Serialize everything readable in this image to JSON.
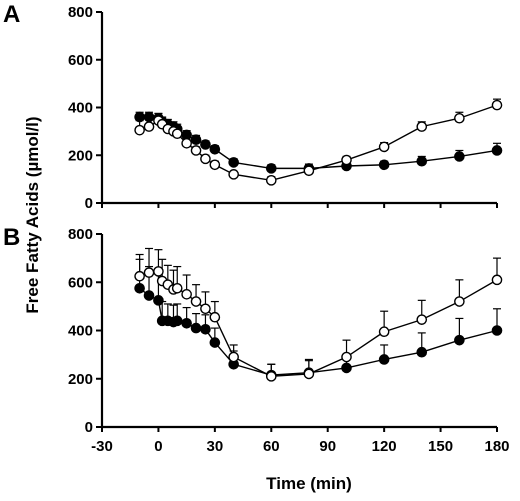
{
  "chart_data": [
    {
      "panel": "A",
      "type": "line",
      "ylim": [
        0,
        800
      ],
      "yticks": [
        0,
        200,
        400,
        600,
        800
      ],
      "series": [
        {
          "marker": "open-circle",
          "color": "#000000",
          "x": [
            -10,
            -5,
            0,
            2,
            5,
            8,
            10,
            15,
            20,
            25,
            30,
            40,
            60,
            80,
            100,
            120,
            140,
            160,
            180
          ],
          "y": [
            305,
            320,
            345,
            330,
            310,
            300,
            290,
            250,
            220,
            185,
            160,
            120,
            95,
            135,
            180,
            235,
            320,
            355,
            410
          ],
          "err": [
            40,
            40,
            30,
            25,
            25,
            20,
            20,
            15,
            15,
            15,
            15,
            12,
            15,
            20,
            15,
            18,
            20,
            25,
            25
          ]
        },
        {
          "marker": "filled-circle",
          "color": "#000000",
          "x": [
            -10,
            -5,
            0,
            2,
            5,
            8,
            10,
            15,
            20,
            25,
            30,
            40,
            60,
            80,
            100,
            120,
            140,
            160,
            180
          ],
          "y": [
            360,
            360,
            355,
            340,
            330,
            320,
            310,
            285,
            265,
            245,
            225,
            170,
            145,
            145,
            155,
            160,
            175,
            195,
            220
          ],
          "err": [
            20,
            20,
            20,
            20,
            20,
            20,
            20,
            18,
            18,
            15,
            15,
            15,
            15,
            18,
            15,
            15,
            20,
            25,
            30
          ]
        }
      ]
    },
    {
      "panel": "B",
      "type": "line",
      "ylim": [
        0,
        800
      ],
      "yticks": [
        0,
        200,
        400,
        600,
        800
      ],
      "series": [
        {
          "marker": "open-circle",
          "color": "#000000",
          "x": [
            -10,
            -5,
            0,
            2,
            5,
            8,
            10,
            15,
            20,
            25,
            30,
            40,
            60,
            80,
            100,
            120,
            140,
            160,
            180
          ],
          "y": [
            625,
            640,
            645,
            605,
            590,
            570,
            575,
            550,
            520,
            490,
            455,
            290,
            210,
            220,
            290,
            395,
            445,
            520,
            610
          ],
          "err": [
            90,
            100,
            90,
            90,
            80,
            80,
            90,
            80,
            70,
            70,
            65,
            50,
            50,
            60,
            70,
            85,
            80,
            90,
            90
          ]
        },
        {
          "marker": "filled-circle",
          "color": "#000000",
          "x": [
            -10,
            -5,
            0,
            2,
            5,
            8,
            10,
            15,
            20,
            25,
            30,
            40,
            60,
            80,
            100,
            120,
            140,
            160,
            180
          ],
          "y": [
            575,
            545,
            525,
            440,
            440,
            435,
            440,
            430,
            410,
            405,
            350,
            260,
            215,
            225,
            245,
            280,
            310,
            360,
            400
          ],
          "err": [
            120,
            120,
            110,
            80,
            70,
            70,
            70,
            65,
            60,
            60,
            60,
            55,
            45,
            50,
            50,
            60,
            80,
            90,
            90
          ]
        }
      ]
    }
  ],
  "labels": {
    "panel_a": "A",
    "panel_b": "B",
    "ylabel": "Free Fatty Acids (µmol/l)",
    "xlabel": "Time (min)",
    "xticks": [
      "-30",
      "0",
      "30",
      "60",
      "90",
      "120",
      "150",
      "180"
    ],
    "xtick_values": [
      -30,
      0,
      30,
      60,
      90,
      120,
      150,
      180
    ],
    "yticks_a": [
      "0",
      "200",
      "400",
      "600",
      "800"
    ],
    "yticks_b": [
      "0",
      "200",
      "400",
      "600",
      "800"
    ]
  },
  "xlim": [
    -30,
    180
  ]
}
